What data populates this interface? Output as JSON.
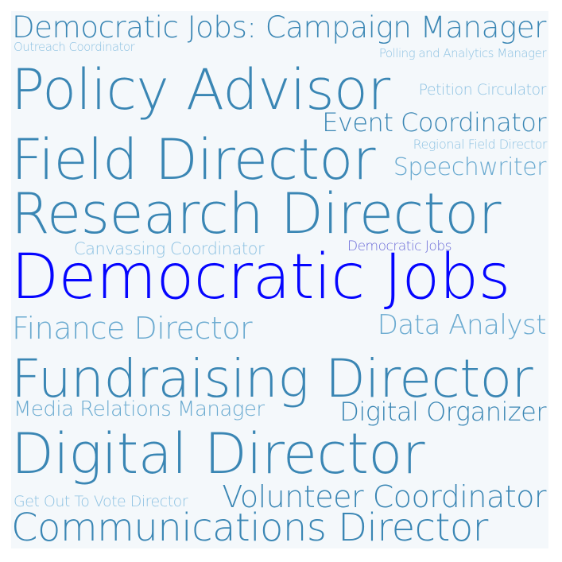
{
  "word_cloud": {
    "background_color": "#f4f8fb",
    "words": {
      "campaign_manager": "Democratic Jobs: Campaign Manager",
      "outreach_coordinator": "Outreach Coordinator",
      "polling_manager": "Polling and Analytics Manager",
      "policy_advisor": "Policy Advisor",
      "petition_circulator": "Petition Circulator",
      "event_coordinator": "Event Coordinator",
      "field_director": "Field Director",
      "regional_field_director": "Regional Field Director",
      "speechwriter": "Speechwriter",
      "research_director": "Research Director",
      "canvassing_coordinator": "Canvassing Coordinator",
      "democratic_jobs_small": "Democratic Jobs",
      "democratic_jobs_main": "Democratic Jobs",
      "finance_director": "Finance Director",
      "data_analyst": "Data Analyst",
      "fundraising_director": "Fundraising Director",
      "media_relations_manager": "Media Relations Manager",
      "digital_organizer": "Digital Organizer",
      "digital_director": "Digital Director",
      "gotv_director": "Get Out To Vote Director",
      "volunteer_coordinator": "Volunteer Coordinator",
      "communications_director": "Communications Director"
    },
    "colors": {
      "primary": "#3a86b4",
      "light": "#6aaad0",
      "pale": "#8ec2e2",
      "highlight": "#0505ff",
      "accent": "#6a6ad8"
    }
  }
}
